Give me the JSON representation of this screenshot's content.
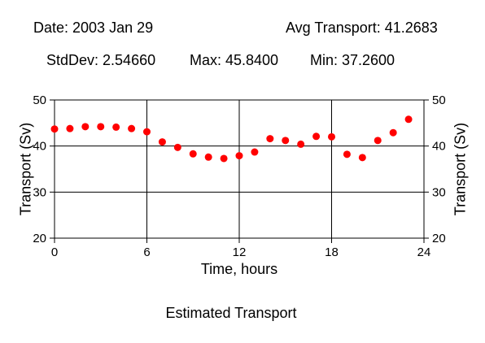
{
  "header": {
    "date": "Date: 2003 Jan 29",
    "avg": "Avg Transport: 41.2683",
    "stddev": "StdDev: 2.54660",
    "max": "Max: 45.8400",
    "min": "Min: 37.2600"
  },
  "chart_data": {
    "type": "scatter",
    "title": "Estimated Transport",
    "xlabel": "Time, hours",
    "ylabel": "Transport (Sv)",
    "xlim": [
      0,
      24
    ],
    "ylim": [
      20,
      50
    ],
    "xticks": [
      0,
      6,
      12,
      18,
      24
    ],
    "yticks": [
      20,
      30,
      40,
      50
    ],
    "grid": true,
    "marker_color": "#ff0000",
    "series": [
      {
        "x": [
          0,
          1,
          2,
          3,
          4,
          5,
          6,
          7,
          8,
          9,
          10,
          11,
          12,
          13,
          14,
          15,
          16,
          17,
          18,
          19,
          20,
          21,
          22,
          23
        ],
        "y": [
          43.7,
          43.8,
          44.2,
          44.2,
          44.1,
          43.8,
          43.1,
          40.9,
          39.7,
          38.3,
          37.6,
          37.3,
          37.9,
          38.7,
          41.6,
          41.2,
          40.4,
          42.1,
          42.0,
          38.2,
          37.5,
          41.2,
          42.9,
          45.8
        ]
      }
    ]
  }
}
